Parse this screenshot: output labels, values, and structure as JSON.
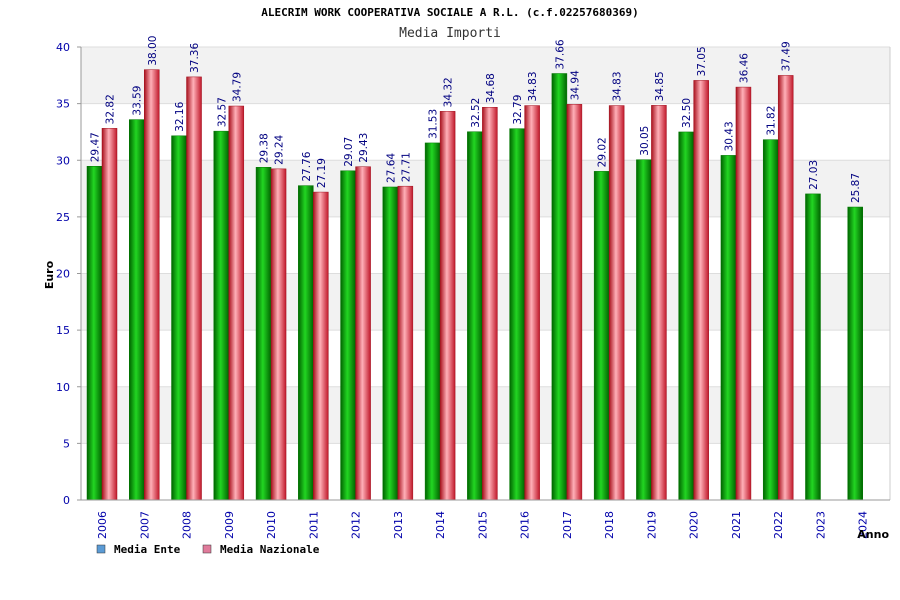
{
  "header": {
    "title": "ALECRIM WORK COOPERATIVA SOCIALE A R.L. (c.f.02257680369)",
    "subtitle": "Media Importi"
  },
  "colors": {
    "ente": "#00b400",
    "ente_dark": "#007800",
    "nazionale": "#e8283c",
    "nazionale_dark": "#a0101e",
    "legend_ente": "#5b9bd5",
    "legend_nazionale": "#e07b9b",
    "axis_text": "#0000aa",
    "label_text": "#000080"
  },
  "legend": {
    "ente": "Media Ente",
    "nazionale": "Media Nazionale"
  },
  "chart_data": {
    "type": "bar",
    "title": "ALECRIM WORK COOPERATIVA SOCIALE A R.L. (c.f.02257680369)",
    "subtitle": "Media Importi",
    "xlabel": "Anno",
    "ylabel": "Euro",
    "ylim": [
      0,
      40
    ],
    "yticks": [
      0,
      5,
      10,
      15,
      20,
      25,
      30,
      35,
      40
    ],
    "grid": true,
    "legend_position": "bottom-left",
    "categories": [
      "2006",
      "2007",
      "2008",
      "2009",
      "2010",
      "2011",
      "2012",
      "2013",
      "2014",
      "2015",
      "2016",
      "2017",
      "2018",
      "2019",
      "2020",
      "2021",
      "2022",
      "2023",
      "2024"
    ],
    "series": [
      {
        "name": "Media Ente",
        "values": [
          29.47,
          33.59,
          32.16,
          32.57,
          29.38,
          27.76,
          29.07,
          27.64,
          31.53,
          32.52,
          32.79,
          37.66,
          29.02,
          30.05,
          32.5,
          30.43,
          31.82,
          27.03,
          25.87
        ],
        "labels": [
          "29.47",
          "33.59",
          "32.16",
          "32.57",
          "29.38",
          "27.76",
          "29.07",
          "27.64",
          "31.53",
          "32.52",
          "32.79",
          "37.66",
          "29.02",
          "30.05",
          "32.50",
          "30.43",
          "31.82",
          "27.03",
          "25.87"
        ]
      },
      {
        "name": "Media Nazionale",
        "values": [
          32.82,
          38.0,
          37.36,
          34.79,
          29.24,
          27.19,
          29.43,
          27.71,
          34.32,
          34.68,
          34.83,
          34.94,
          34.83,
          34.85,
          37.05,
          36.46,
          37.49,
          null,
          null
        ],
        "labels": [
          "32.82",
          "38.00",
          "37.36",
          "34.79",
          "29.24",
          "27.19",
          "29.43",
          "27.71",
          "34.32",
          "34.68",
          "34.83",
          "34.94",
          "34.83",
          "34.85",
          "37.05",
          "36.46",
          "37.49",
          "",
          ""
        ]
      }
    ]
  }
}
